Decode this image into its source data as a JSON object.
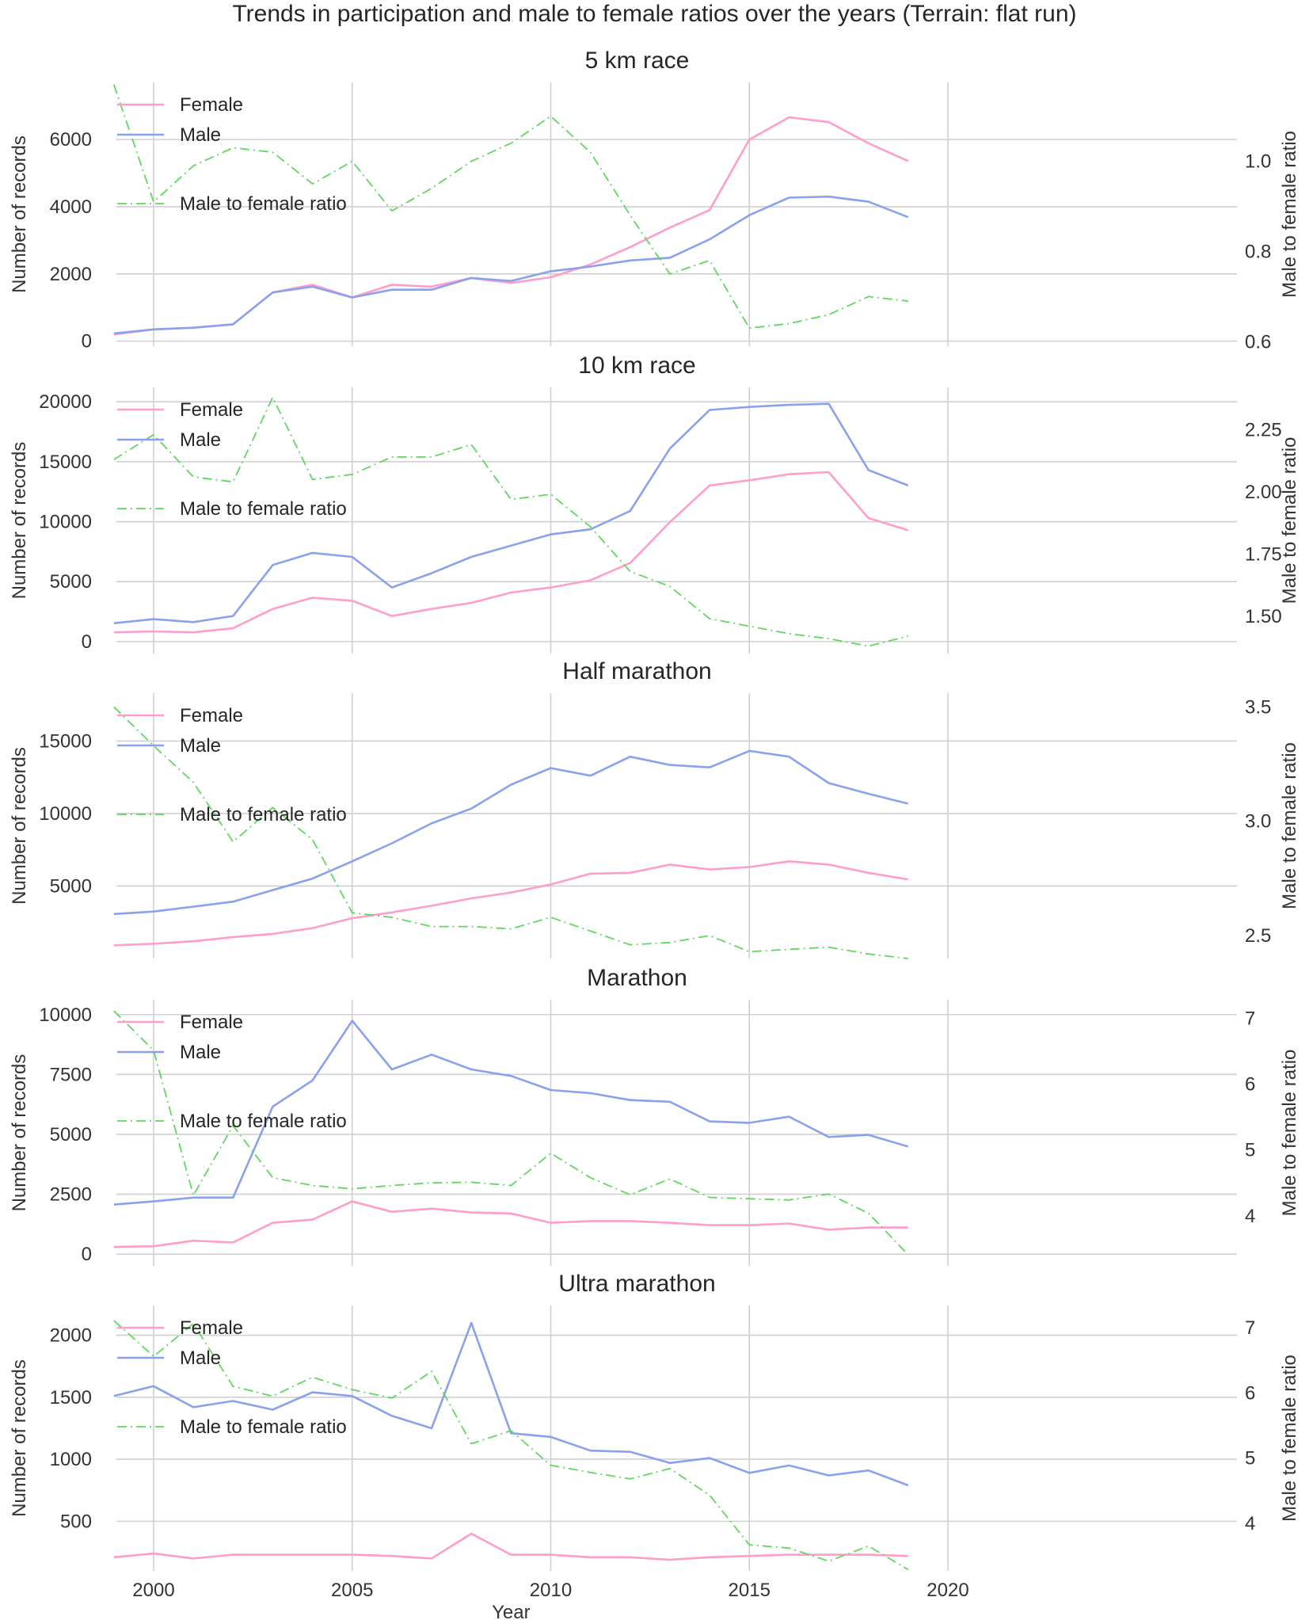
{
  "figure": {
    "title": "Trends in participation and male to female ratios over the years (Terrain: flat run)",
    "xlabel": "Year",
    "colors": {
      "female": "#ff9ecb",
      "male": "#8aa1ee",
      "ratio": "#5fd85f"
    }
  },
  "chart_data": [
    {
      "type": "line",
      "title": "5 km race",
      "xlabel": "",
      "ylabel": "Number of records",
      "y2label": "Male to female ratio",
      "x": [
        1999,
        2000,
        2001,
        2002,
        2003,
        2004,
        2005,
        2006,
        2007,
        2008,
        2009,
        2010,
        2011,
        2012,
        2013,
        2014,
        2015,
        2016,
        2017,
        2018,
        2019
      ],
      "xlim": [
        1997.5,
        2020
      ],
      "xticks": [
        2000,
        2005,
        2010,
        2015,
        2020
      ],
      "ylim": [
        -150,
        7700
      ],
      "yticks": [
        0,
        2000,
        4000,
        6000
      ],
      "ytick_labels": [
        "0",
        "2000",
        "4000",
        "6000"
      ],
      "y2lim": [
        0.59,
        1.175
      ],
      "y2ticks": [
        0.6,
        0.8,
        1.0
      ],
      "y2tick_labels": [
        "0.6",
        "0.8",
        "1.0"
      ],
      "legend": [
        "Female",
        "Male",
        "Male to female ratio"
      ],
      "legend_position": "upper-left",
      "grid": true,
      "series": [
        {
          "name": "Female",
          "axis": "left",
          "values": [
            200,
            350,
            400,
            500,
            1450,
            1680,
            1300,
            1680,
            1620,
            1880,
            1730,
            1900,
            2280,
            2800,
            3380,
            3900,
            6000,
            6660,
            6520,
            5890,
            5360
          ]
        },
        {
          "name": "Male",
          "axis": "left",
          "values": [
            230,
            350,
            400,
            500,
            1450,
            1620,
            1300,
            1530,
            1530,
            1880,
            1790,
            2080,
            2220,
            2400,
            2480,
            3030,
            3750,
            4270,
            4300,
            4150,
            3690
          ]
        },
        {
          "name": "Male to female ratio",
          "axis": "right",
          "values": [
            1.17,
            0.91,
            0.99,
            1.03,
            1.02,
            0.95,
            1.0,
            0.89,
            0.94,
            1.0,
            1.04,
            1.1,
            1.02,
            0.88,
            0.75,
            0.78,
            0.63,
            0.64,
            0.66,
            0.7,
            0.69
          ]
        }
      ]
    },
    {
      "type": "line",
      "title": "10 km race",
      "xlabel": "",
      "ylabel": "Number of records",
      "y2label": "Male to female ratio",
      "x": [
        1999,
        2000,
        2001,
        2002,
        2003,
        2004,
        2005,
        2006,
        2007,
        2008,
        2009,
        2010,
        2011,
        2012,
        2013,
        2014,
        2015,
        2016,
        2017,
        2018,
        2019
      ],
      "xlim": [
        1997.5,
        2020
      ],
      "xticks": [
        2000,
        2005,
        2010,
        2015,
        2020
      ],
      "ylim": [
        -1000,
        21200
      ],
      "yticks": [
        0,
        5000,
        10000,
        15000,
        20000
      ],
      "ytick_labels": [
        "0",
        "5000",
        "10000",
        "15000",
        "20000"
      ],
      "y2lim": [
        1.35,
        2.42
      ],
      "y2ticks": [
        1.5,
        1.75,
        2.0,
        2.25
      ],
      "y2tick_labels": [
        "1.50",
        "1.75",
        "2.00",
        "2.25"
      ],
      "legend": [
        "Female",
        "Male",
        "Male to female ratio"
      ],
      "legend_position": "upper-left",
      "grid": true,
      "series": [
        {
          "name": "Female",
          "axis": "left",
          "values": [
            770,
            850,
            770,
            1110,
            2720,
            3660,
            3400,
            2130,
            2720,
            3230,
            4090,
            4510,
            5110,
            6550,
            9960,
            13020,
            13450,
            13960,
            14130,
            10300,
            9280
          ]
        },
        {
          "name": "Male",
          "axis": "left",
          "values": [
            1530,
            1870,
            1620,
            2130,
            6380,
            7400,
            7060,
            4510,
            5700,
            7060,
            8000,
            8940,
            9360,
            10890,
            16090,
            19320,
            19570,
            19740,
            19830,
            14300,
            13020
          ]
        },
        {
          "name": "Male to female ratio",
          "axis": "right",
          "values": [
            2.13,
            2.23,
            2.06,
            2.04,
            2.38,
            2.05,
            2.07,
            2.14,
            2.14,
            2.19,
            1.97,
            1.99,
            1.86,
            1.68,
            1.62,
            1.49,
            1.46,
            1.43,
            1.41,
            1.38,
            1.42
          ]
        }
      ]
    },
    {
      "type": "line",
      "title": "Half marathon",
      "xlabel": "",
      "ylabel": "Number of records",
      "y2label": "Male to female ratio",
      "x": [
        1999,
        2000,
        2001,
        2002,
        2003,
        2004,
        2005,
        2006,
        2007,
        2008,
        2009,
        2010,
        2011,
        2012,
        2013,
        2014,
        2015,
        2016,
        2017,
        2018,
        2019
      ],
      "xlim": [
        1997.5,
        2020
      ],
      "xticks": [
        2000,
        2005,
        2010,
        2015,
        2020
      ],
      "ylim": [
        0,
        18300
      ],
      "yticks": [
        5000,
        10000,
        15000
      ],
      "ytick_labels": [
        "5000",
        "10000",
        "15000"
      ],
      "y2lim": [
        2.4,
        3.56
      ],
      "y2ticks": [
        2.5,
        3.0,
        3.5
      ],
      "y2tick_labels": [
        "2.5",
        "3.0",
        "3.5"
      ],
      "legend": [
        "Female",
        "Male",
        "Male to female ratio"
      ],
      "legend_position": "upper-left",
      "grid": true,
      "series": [
        {
          "name": "Female",
          "axis": "left",
          "values": [
            910,
            1020,
            1190,
            1480,
            1700,
            2100,
            2780,
            3180,
            3640,
            4150,
            4550,
            5110,
            5850,
            5910,
            6480,
            6140,
            6310,
            6700,
            6480,
            5910,
            5450
          ]
        },
        {
          "name": "Male",
          "axis": "left",
          "values": [
            3070,
            3240,
            3580,
            3920,
            4720,
            5510,
            6700,
            7950,
            9320,
            10340,
            11990,
            13130,
            12610,
            13920,
            13350,
            13180,
            14320,
            13920,
            12100,
            11360,
            10680
          ]
        },
        {
          "name": "Male to female ratio",
          "axis": "right",
          "values": [
            3.5,
            3.33,
            3.17,
            2.91,
            3.06,
            2.92,
            2.6,
            2.58,
            2.54,
            2.54,
            2.53,
            2.58,
            2.52,
            2.46,
            2.47,
            2.5,
            2.43,
            2.44,
            2.45,
            2.42,
            2.4
          ]
        }
      ]
    },
    {
      "type": "line",
      "title": "Marathon",
      "xlabel": "",
      "ylabel": "Number of records",
      "y2label": "Male to female ratio",
      "x": [
        1999,
        2000,
        2001,
        2002,
        2003,
        2004,
        2005,
        2006,
        2007,
        2008,
        2009,
        2010,
        2011,
        2012,
        2013,
        2014,
        2015,
        2016,
        2017,
        2018,
        2019
      ],
      "xlim": [
        1997.5,
        2020
      ],
      "xticks": [
        2000,
        2005,
        2010,
        2015,
        2020
      ],
      "ylim": [
        -490,
        10620
      ],
      "yticks": [
        0,
        2500,
        5000,
        7500,
        10000
      ],
      "ytick_labels": [
        "0",
        "2500",
        "5000",
        "7500",
        "10000"
      ],
      "y2lim": [
        3.24,
        7.28
      ],
      "y2ticks": [
        4,
        5,
        6,
        7
      ],
      "y2tick_labels": [
        "4",
        "5",
        "6",
        "7"
      ],
      "legend": [
        "Female",
        "Male",
        "Male to female ratio"
      ],
      "legend_position": "upper-left",
      "grid": true,
      "series": [
        {
          "name": "Female",
          "axis": "left",
          "values": [
            300,
            330,
            560,
            490,
            1310,
            1440,
            2200,
            1770,
            1900,
            1740,
            1700,
            1310,
            1380,
            1380,
            1310,
            1210,
            1210,
            1280,
            1020,
            1110,
            1110
          ]
        },
        {
          "name": "Male",
          "axis": "left",
          "values": [
            2070,
            2200,
            2360,
            2360,
            6160,
            7250,
            9740,
            7710,
            8330,
            7710,
            7440,
            6850,
            6720,
            6430,
            6360,
            5540,
            5480,
            5740,
            4890,
            4980,
            4490
          ]
        },
        {
          "name": "Male to female ratio",
          "axis": "right",
          "values": [
            7.11,
            6.51,
            4.31,
            5.37,
            4.58,
            4.46,
            4.41,
            4.46,
            4.5,
            4.51,
            4.46,
            4.95,
            4.58,
            4.32,
            4.56,
            4.28,
            4.26,
            4.24,
            4.33,
            4.04,
            3.41
          ]
        }
      ]
    },
    {
      "type": "line",
      "title": "Ultra marathon",
      "xlabel": "Year",
      "ylabel": "Number of records",
      "y2label": "Male to female ratio",
      "x": [
        1999,
        2000,
        2001,
        2002,
        2003,
        2004,
        2005,
        2006,
        2007,
        2008,
        2009,
        2010,
        2011,
        2012,
        2013,
        2014,
        2015,
        2016,
        2017,
        2018,
        2019
      ],
      "xlim": [
        1997.5,
        2020
      ],
      "xticks": [
        2000,
        2005,
        2010,
        2015,
        2020
      ],
      "xtick_labels": [
        "2000",
        "2005",
        "2010",
        "2015",
        "2020"
      ],
      "ylim": [
        100,
        2240
      ],
      "yticks": [
        500,
        1000,
        1500,
        2000
      ],
      "ytick_labels": [
        "500",
        "1000",
        "1500",
        "2000"
      ],
      "y2lim": [
        3.27,
        7.34
      ],
      "y2ticks": [
        4,
        5,
        6,
        7
      ],
      "y2tick_labels": [
        "4",
        "5",
        "6",
        "7"
      ],
      "legend": [
        "Female",
        "Male",
        "Male to female ratio"
      ],
      "legend_position": "upper-left",
      "grid": true,
      "series": [
        {
          "name": "Female",
          "axis": "left",
          "values": [
            210,
            240,
            200,
            230,
            230,
            230,
            230,
            220,
            200,
            400,
            230,
            230,
            210,
            210,
            190,
            210,
            220,
            230,
            230,
            230,
            220
          ]
        },
        {
          "name": "Male",
          "axis": "left",
          "values": [
            1510,
            1590,
            1420,
            1470,
            1400,
            1540,
            1510,
            1350,
            1250,
            2100,
            1210,
            1180,
            1070,
            1060,
            970,
            1010,
            890,
            950,
            870,
            910,
            790
          ]
        },
        {
          "name": "Male to female ratio",
          "axis": "right",
          "values": [
            7.11,
            6.56,
            7.06,
            6.1,
            5.95,
            6.24,
            6.05,
            5.92,
            6.33,
            5.22,
            5.42,
            4.89,
            4.78,
            4.68,
            4.84,
            4.43,
            3.67,
            3.62,
            3.42,
            3.65,
            3.29
          ]
        }
      ]
    }
  ]
}
